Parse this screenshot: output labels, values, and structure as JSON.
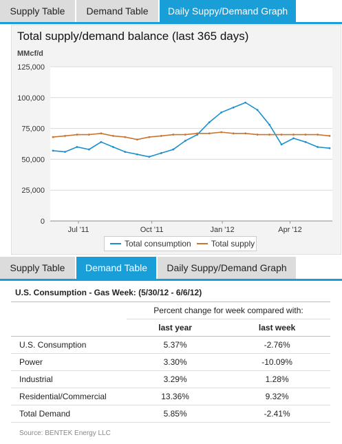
{
  "tabs_top": [
    {
      "label": "Supply Table",
      "active": false
    },
    {
      "label": "Demand Table",
      "active": false
    },
    {
      "label": "Daily Suppy/Demand Graph",
      "active": true
    }
  ],
  "tabs_mid": [
    {
      "label": "Supply Table",
      "active": false
    },
    {
      "label": "Demand Table",
      "active": true
    },
    {
      "label": "Daily Suppy/Demand Graph",
      "active": false
    }
  ],
  "colors": {
    "accent": "#1a9ed8",
    "consumption": "#1a8fcf",
    "supply": "#c8742f"
  },
  "chart": {
    "title": "Total supply/demand balance (last 365 days)",
    "unit": "MMcf/d"
  },
  "chart_data": {
    "type": "line",
    "title": "Total supply/demand balance (last 365 days)",
    "ylabel": "MMcf/d",
    "ylim": [
      0,
      125000
    ],
    "y_ticks": [
      "0",
      "25,000",
      "50,000",
      "75,000",
      "100,000",
      "125,000"
    ],
    "x_tick_labels": [
      "Jul '11",
      "Oct '11",
      "Jan '12",
      "Apr '12"
    ],
    "grid": true,
    "legend_position": "bottom",
    "x": [
      "Jun '11",
      "Jul '11",
      "Jul '11",
      "Aug '11",
      "Aug '11",
      "Sep '11",
      "Sep '11",
      "Oct '11",
      "Oct '11",
      "Nov '11",
      "Nov '11",
      "Dec '11",
      "Dec '11",
      "Jan '12",
      "Jan '12",
      "Feb '12",
      "Feb '12",
      "Mar '12",
      "Mar '12",
      "Apr '12",
      "Apr '12",
      "May '12",
      "May '12",
      "Jun '12"
    ],
    "series": [
      {
        "name": "Total consumption",
        "values": [
          57000,
          56000,
          60000,
          58000,
          64000,
          60000,
          56000,
          54000,
          52000,
          55000,
          58000,
          65000,
          70000,
          80000,
          88000,
          92000,
          96000,
          90000,
          78000,
          62000,
          67000,
          64000,
          60000,
          59000
        ]
      },
      {
        "name": "Total supply",
        "values": [
          68000,
          69000,
          70000,
          70000,
          71000,
          69000,
          68000,
          66000,
          68000,
          69000,
          70000,
          70000,
          71000,
          71000,
          72000,
          71000,
          71000,
          70000,
          70000,
          70000,
          70000,
          70000,
          70000,
          69000
        ]
      }
    ]
  },
  "demand_table": {
    "title": "U.S. Consumption - Gas Week: (5/30/12 - 6/6/12)",
    "group_header": "Percent change for week compared with:",
    "columns": [
      "last year",
      "last week"
    ],
    "rows": [
      {
        "label": "U.S. Consumption",
        "last_year": "5.37%",
        "last_week": "-2.76%"
      },
      {
        "label": "Power",
        "last_year": "3.30%",
        "last_week": "-10.09%"
      },
      {
        "label": "Industrial",
        "last_year": "3.29%",
        "last_week": "1.28%"
      },
      {
        "label": "Residential/Commercial",
        "last_year": "13.36%",
        "last_week": "9.32%"
      },
      {
        "label": "Total Demand",
        "last_year": "5.85%",
        "last_week": "-2.41%"
      }
    ],
    "source": "Source: BENTEK Energy LLC"
  }
}
